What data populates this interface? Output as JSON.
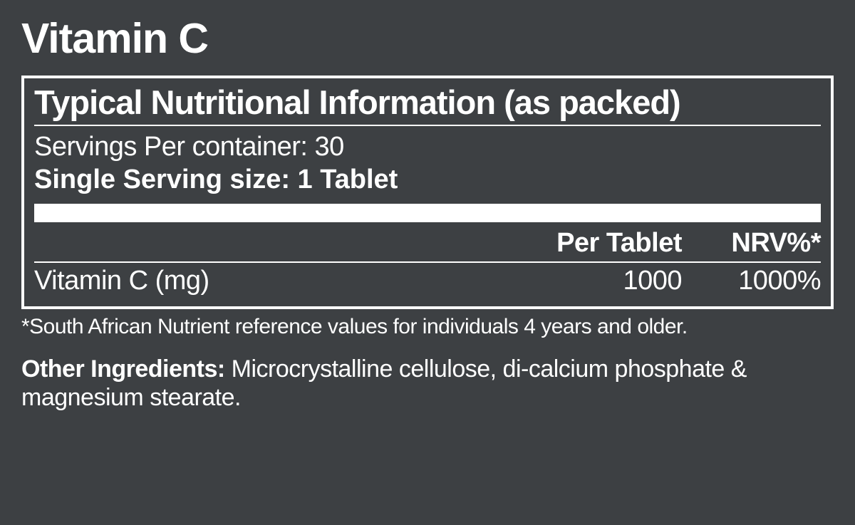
{
  "product_title": "Vitamin C",
  "panel": {
    "title": "Typical Nutritional Information (as packed)",
    "servings_text": "Servings Per container: 30",
    "serving_size_text": "Single Serving size: 1 Tablet",
    "columns": {
      "per": "Per Tablet",
      "nrv": "NRV%*"
    },
    "rows": [
      {
        "nutrient": "Vitamin C (mg)",
        "per": "1000",
        "nrv": "1000%"
      }
    ]
  },
  "footnote": "*South African Nutrient reference values for individuals 4 years and older.",
  "other_ingredients": {
    "label": "Other Ingredients:",
    "text": " Microcrystalline cellulose, di-calcium phosphate & magnesium stearate."
  },
  "colors": {
    "background": "#3d4043",
    "text": "#ffffff",
    "border": "#ffffff"
  },
  "typography": {
    "title_fontsize": 59,
    "panel_title_fontsize": 47,
    "body_fontsize": 38,
    "footnote_fontsize": 30,
    "ingredients_fontsize": 34
  }
}
